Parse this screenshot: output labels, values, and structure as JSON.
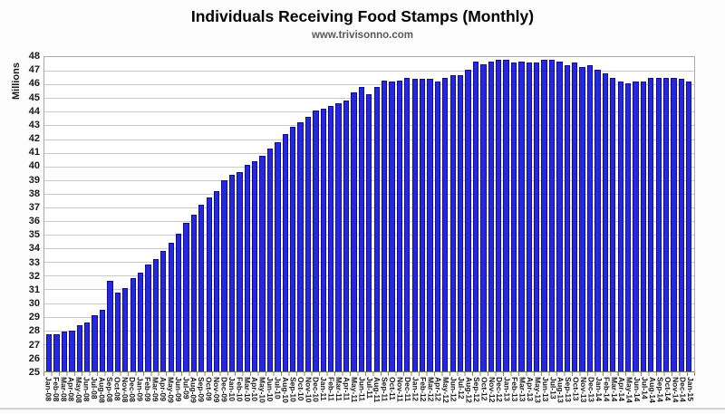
{
  "chart_data": {
    "type": "bar",
    "title": "Individuals Receiving Food Stamps (Monthly)",
    "subtitle": "www.trivisonno.com",
    "ylabel": "Millions",
    "xlabel": "",
    "ylim": [
      25,
      48
    ],
    "y_ticks": [
      48,
      47,
      46,
      45,
      44,
      43,
      42,
      41,
      40,
      39,
      38,
      37,
      36,
      35,
      34,
      33,
      32,
      31,
      30,
      29,
      28,
      27,
      26,
      25
    ],
    "grid": true,
    "legend": "none",
    "bar_color": "#2727de",
    "bar_edge_color": "#0d0d98",
    "categories": [
      "Jan-08",
      "Feb-08",
      "Mar-08",
      "Apr-08",
      "May-08",
      "Jun-08",
      "Jul-08",
      "Aug-08",
      "Sep-08",
      "Oct-08",
      "Nov-08",
      "Dec-08",
      "Jan-09",
      "Feb-09",
      "Mar-09",
      "Apr-09",
      "May-09",
      "Jun-09",
      "Jul-09",
      "Aug-09",
      "Sep-09",
      "Oct-09",
      "Nov-09",
      "Dec-09",
      "Jan-10",
      "Feb-10",
      "Mar-10",
      "Apr-10",
      "May-10",
      "Jun-10",
      "Jul-10",
      "Aug-10",
      "Sep-10",
      "Oct-10",
      "Nov-10",
      "Dec-10",
      "Jan-11",
      "Feb-11",
      "Mar-11",
      "Apr-11",
      "May-11",
      "Jun-11",
      "Jul-11",
      "Aug-11",
      "Sep-11",
      "Oct-11",
      "Nov-11",
      "Dec-11",
      "Jan-12",
      "Feb-12",
      "Mar-12",
      "Apr-12",
      "May-12",
      "Jun-12",
      "Jul-12",
      "Aug-12",
      "Sep-12",
      "Oct-12",
      "Nov-12",
      "Dec-12",
      "Jan-13",
      "Feb-13",
      "Mar-13",
      "Apr-13",
      "May-13",
      "Jun-13",
      "Jul-13",
      "Aug-13",
      "Sep-13",
      "Oct-13",
      "Nov-13",
      "Dec-13",
      "Jan-14",
      "Feb-14",
      "Mar-14",
      "Apr-14",
      "May-14",
      "Jun-14",
      "Jul-14",
      "Aug-14",
      "Sep-14",
      "Oct-14",
      "Nov-14",
      "Dec-14",
      "Jan-15"
    ],
    "values": [
      27.7,
      27.7,
      27.9,
      28.0,
      28.4,
      28.6,
      29.1,
      29.5,
      31.6,
      30.8,
      31.1,
      31.8,
      32.2,
      32.8,
      33.2,
      33.8,
      34.4,
      35.1,
      35.9,
      36.5,
      37.2,
      37.7,
      38.2,
      39.0,
      39.4,
      39.6,
      40.1,
      40.4,
      40.8,
      41.3,
      41.8,
      42.4,
      42.9,
      43.2,
      43.6,
      44.1,
      44.2,
      44.4,
      44.6,
      44.8,
      45.4,
      45.8,
      45.3,
      45.8,
      46.3,
      46.2,
      46.3,
      46.5,
      46.4,
      46.4,
      46.4,
      46.2,
      46.5,
      46.7,
      46.7,
      47.1,
      47.7,
      47.5,
      47.7,
      47.8,
      47.8,
      47.6,
      47.7,
      47.6,
      47.6,
      47.8,
      47.8,
      47.7,
      47.4,
      47.6,
      47.3,
      47.4,
      47.1,
      46.8,
      46.5,
      46.2,
      46.1,
      46.2,
      46.2,
      46.5,
      46.5,
      46.5,
      46.5,
      46.4,
      46.2
    ]
  }
}
